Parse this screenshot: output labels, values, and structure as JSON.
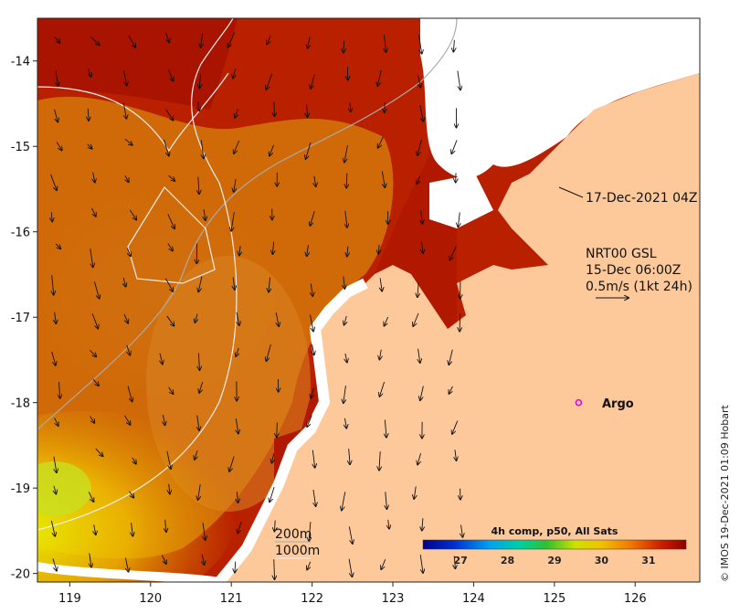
{
  "map": {
    "x_ticks": [
      "119",
      "120",
      "121",
      "122",
      "123",
      "124",
      "125",
      "126"
    ],
    "y_ticks": [
      "-14",
      "-15",
      "-16",
      "-17",
      "-18",
      "-19",
      "-20"
    ],
    "x_range": [
      118.6,
      126.8
    ],
    "y_range": [
      -20.1,
      -13.5
    ]
  },
  "annotations": {
    "sat_pass": "17-Dec-2021 04Z",
    "current_source": "NRT00 GSL",
    "current_time": "15-Dec 06:00Z",
    "current_scale": "0.5m/s (1kt 24h)"
  },
  "isobaths": {
    "iso_200": "200m",
    "iso_1000": "1000m"
  },
  "argo": {
    "label": "Argo",
    "lon": 125.3,
    "lat": -18.0,
    "color": "#e000e0"
  },
  "colorbar": {
    "title": "4h comp, p50, All Sats",
    "ticks": [
      "27",
      "28",
      "29",
      "30",
      "31"
    ],
    "range": [
      26.2,
      31.8
    ]
  },
  "credit": "© IMOS 19-Dec-2021 01:09 Hobart",
  "colors": {
    "land": "#fdc99a",
    "ocean_hot": "#a80000",
    "ocean_warm": "#d86000",
    "ocean_cool": "#f0d000"
  }
}
